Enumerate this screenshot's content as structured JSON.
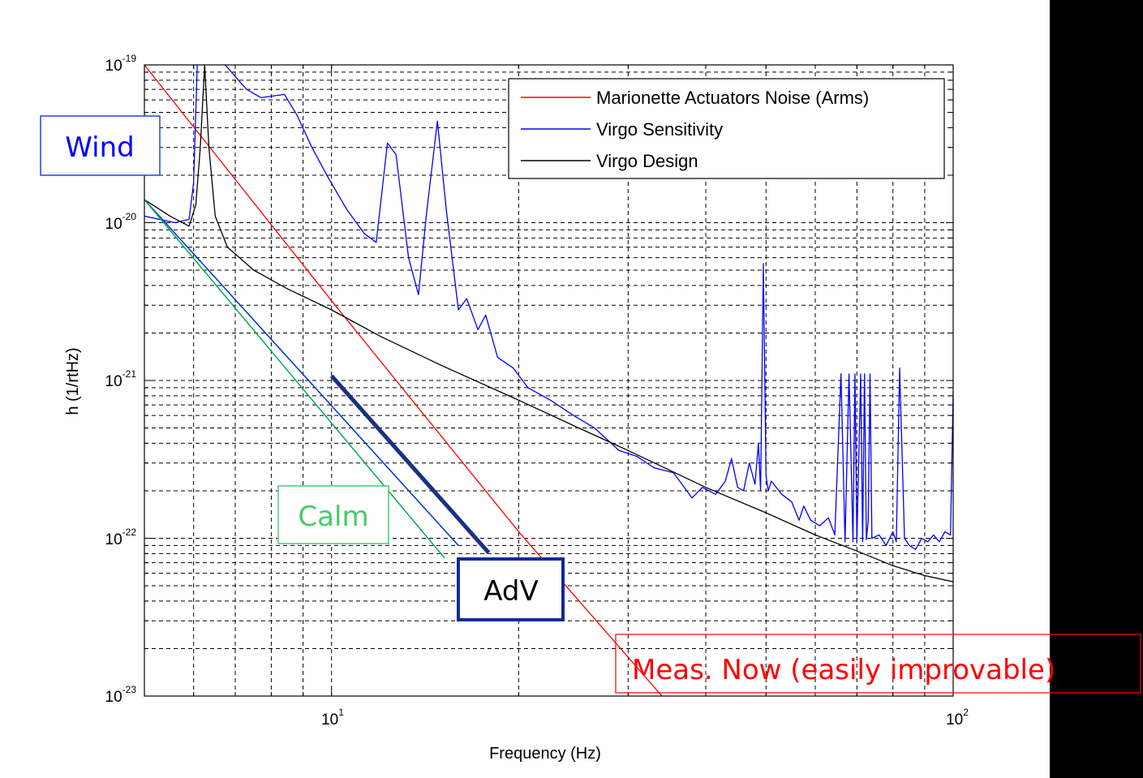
{
  "chart_data": {
    "type": "line",
    "xscale": "log",
    "yscale": "log",
    "xlim": [
      5,
      100
    ],
    "ylim": [
      1e-23,
      1e-19
    ],
    "xlabel": "Frequency (Hz)",
    "ylabel": "h (1/rtHz)",
    "grid": true,
    "legend_position": "top-right",
    "xticks": [
      {
        "value": 10,
        "base": "10",
        "exp": "1"
      },
      {
        "value": 100,
        "base": "10",
        "exp": "2"
      }
    ],
    "yticks": [
      {
        "value": 1e-19,
        "base": "10",
        "exp": "-19"
      },
      {
        "value": 1e-20,
        "base": "10",
        "exp": "-20"
      },
      {
        "value": 1e-21,
        "base": "10",
        "exp": "-21"
      },
      {
        "value": 1e-22,
        "base": "10",
        "exp": "-22"
      },
      {
        "value": 1e-23,
        "base": "10",
        "exp": "-23"
      }
    ],
    "series": [
      {
        "name": "Marionette Actuators Noise (Arms)",
        "color": "#ff0000",
        "x": [
          5,
          10,
          20,
          34
        ],
        "y": [
          1e-19,
          3.2e-21,
          1.1e-22,
          1e-23
        ]
      },
      {
        "name": "Virgo Sensitivity",
        "color": "#0000ff",
        "x": [
          5,
          5.6,
          5.9,
          6.0,
          6.1,
          6.2,
          6.3,
          6.6,
          7.3,
          7.7,
          8.4,
          8.8,
          9.3,
          9.9,
          10.6,
          11.3,
          11.8,
          12.3,
          12.7,
          13.3,
          13.8,
          14.2,
          14.8,
          15.3,
          16.0,
          16.5,
          17.2,
          17.7,
          18.5,
          19.6,
          20.7,
          22.5,
          24.5,
          26.5,
          29,
          31,
          33,
          35.5,
          38,
          39.5,
          41.5,
          43,
          44,
          45,
          46,
          47,
          48,
          48.6,
          49.0,
          49.5,
          50,
          50.4,
          51,
          53,
          55,
          56.5,
          57.5,
          59,
          61,
          63,
          64.5,
          66,
          67,
          68,
          69,
          69.5,
          70,
          71,
          71.5,
          72,
          72.5,
          73,
          73.5,
          74,
          76,
          78,
          80,
          81,
          82,
          83.5,
          85,
          87,
          89,
          91,
          93,
          95,
          97,
          99,
          100
        ],
        "y": [
          1.1e-20,
          1e-20,
          1.05e-20,
          1.8e-20,
          1.5e-19,
          1e-19,
          1.3e-19,
          1.1e-19,
          7e-20,
          6.2e-20,
          6.5e-20,
          4.8e-20,
          3e-20,
          1.9e-20,
          1.2e-20,
          8.5e-21,
          7.5e-21,
          3.2e-20,
          2.7e-20,
          6e-21,
          3.5e-21,
          1.1e-20,
          4.4e-20,
          1.2e-20,
          2.8e-21,
          3.3e-21,
          2.1e-21,
          2.6e-21,
          1.4e-21,
          1.2e-21,
          9e-22,
          7.5e-22,
          6e-22,
          5e-22,
          3.6e-22,
          3.3e-22,
          2.8e-22,
          2.6e-22,
          1.8e-22,
          2.1e-22,
          1.9e-22,
          2.3e-22,
          3.2e-22,
          2.1e-22,
          2e-22,
          3e-22,
          2.2e-22,
          4e-22,
          2e-22,
          5.5e-21,
          2.5e-22,
          2e-22,
          2.3e-22,
          1.9e-22,
          1.7e-22,
          1.3e-22,
          1.6e-22,
          1.3e-22,
          1.2e-22,
          1.35e-22,
          1.05e-22,
          1.1e-21,
          9.5e-23,
          1.1e-21,
          9.5e-23,
          1.1e-21,
          9.5e-23,
          1.1e-21,
          9.5e-23,
          1.1e-21,
          9.8e-23,
          1.3e-22,
          1.1e-21,
          1e-22,
          1.05e-22,
          9e-23,
          1.1e-22,
          9.5e-23,
          1.2e-21,
          1e-22,
          9e-23,
          8.5e-23,
          1e-22,
          9.5e-23,
          1.05e-22,
          9.5e-23,
          1.1e-22,
          1.05e-22,
          8.5e-22
        ]
      },
      {
        "name": "Virgo Design",
        "color": "#000000",
        "x": [
          5,
          5.5,
          5.9,
          6.05,
          6.15,
          6.25,
          6.35,
          6.5,
          6.8,
          7.5,
          8.5,
          10,
          12,
          15,
          20,
          25,
          30,
          40,
          50,
          60,
          70,
          80,
          90,
          100
        ],
        "y": [
          1.4e-20,
          1.1e-20,
          9.5e-21,
          1.3e-20,
          3e-20,
          1e-19,
          3e-20,
          1.1e-20,
          7e-21,
          5e-21,
          3.8e-21,
          2.8e-21,
          1.9e-21,
          1.25e-21,
          7.5e-22,
          5e-22,
          3.6e-22,
          2.1e-22,
          1.45e-22,
          1.05e-22,
          8.3e-23,
          6.7e-23,
          5.8e-23,
          5.3e-23
        ]
      },
      {
        "color": "#0033cc",
        "x": [
          5,
          16
        ],
        "y": [
          1.4e-20,
          9e-23
        ]
      },
      {
        "color": "#00aa55",
        "x": [
          5,
          15.2
        ],
        "y": [
          1.4e-20,
          7.5e-23
        ]
      },
      {
        "color": "#1a3080",
        "x": [
          10,
          17.9
        ],
        "y": [
          1.07e-21,
          8.1e-23
        ]
      }
    ],
    "annotations": [
      {
        "text": "Wind",
        "color": "#0000ff",
        "border": "#2244dd"
      },
      {
        "text": "Calm",
        "color": "#44cc66",
        "border": "#44cc77"
      },
      {
        "text": "AdV",
        "color": "#000000",
        "border": "#102a9a"
      },
      {
        "text": "Meas. Now (easily improvable)",
        "color": "#ff0000",
        "border": "#ff0000"
      }
    ]
  }
}
